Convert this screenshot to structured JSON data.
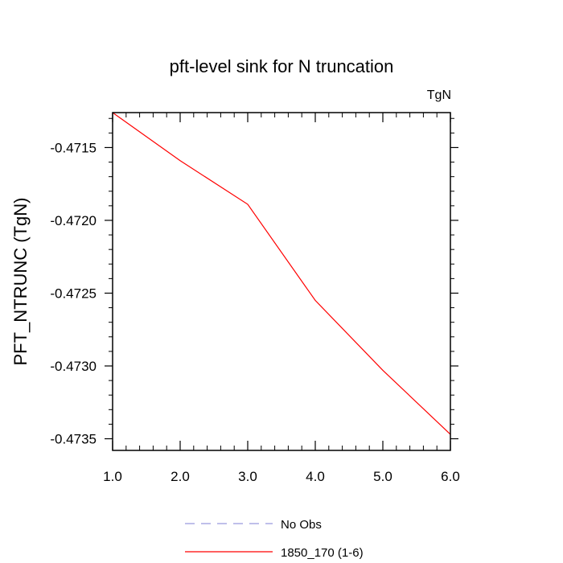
{
  "chart_data": {
    "type": "line",
    "title": "pft-level sink for N truncation",
    "units_label": "TgN",
    "xlabel": "",
    "ylabel": "PFT_NTRUNC  (TgN)",
    "xlim": [
      1.0,
      6.0
    ],
    "ylim": [
      -0.47358,
      -0.47126
    ],
    "x_ticks": [
      1.0,
      2.0,
      3.0,
      4.0,
      5.0,
      6.0
    ],
    "x_tick_labels": [
      "1.0",
      "2.0",
      "3.0",
      "4.0",
      "5.0",
      "6.0"
    ],
    "y_ticks": [
      -0.4715,
      -0.472,
      -0.4725,
      -0.473,
      -0.4735
    ],
    "y_tick_labels": [
      "-0.4715",
      "-0.4720",
      "-0.4725",
      "-0.4730",
      "-0.4735"
    ],
    "grid": false,
    "legend_position": "bottom",
    "series": [
      {
        "name": "1850_170 (1-6)",
        "color": "#ff0000",
        "dash": "solid",
        "x": [
          1.0,
          2.0,
          3.0,
          4.0,
          5.0,
          6.0
        ],
        "values": [
          -0.47126,
          -0.47159,
          -0.47189,
          -0.47255,
          -0.47303,
          -0.47347
        ]
      }
    ],
    "legend": [
      {
        "label": "No Obs",
        "color": "#9999dd",
        "dash": "dashed"
      },
      {
        "label": "1850_170 (1-6)",
        "color": "#ff0000",
        "dash": "solid"
      }
    ]
  }
}
